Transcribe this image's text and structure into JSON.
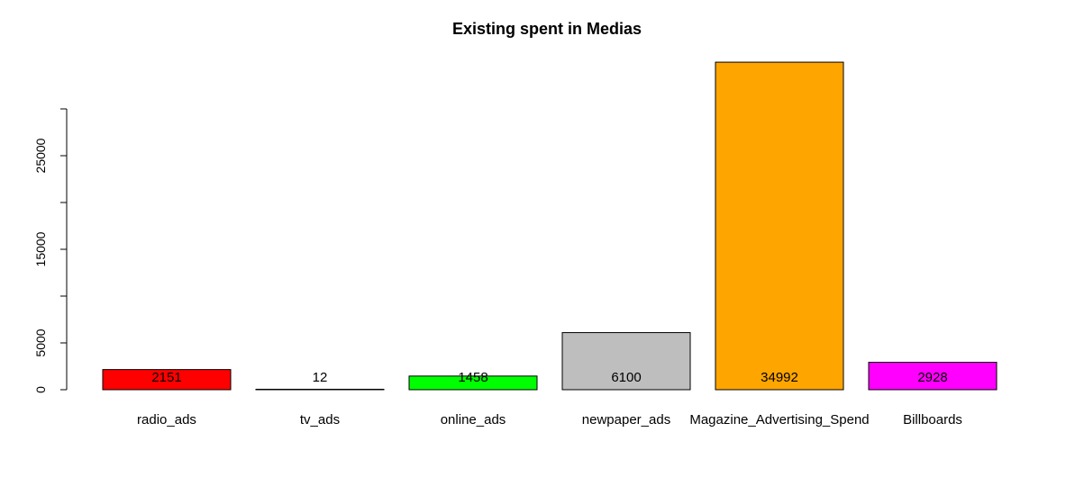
{
  "chart_data": {
    "type": "bar",
    "title": "Existing spent in Medias",
    "xlabel": "",
    "ylabel": "",
    "categories": [
      "radio_ads",
      "tv_ads",
      "online_ads",
      "newpaper_ads",
      "Magazine_Advertising_Spend",
      "Billboards"
    ],
    "values": [
      2151,
      12,
      1458,
      6100,
      34992,
      2928
    ],
    "colors": [
      "#ff0000",
      "#ffffff",
      "#00ff00",
      "#bebebe",
      "#ffa500",
      "#ff00ff"
    ],
    "yticks": [
      0,
      5000,
      15000,
      25000
    ],
    "yticks_unlabeled": [
      10000,
      20000,
      30000
    ],
    "ylim": [
      0,
      37000
    ],
    "grid": false,
    "legend": "none"
  }
}
